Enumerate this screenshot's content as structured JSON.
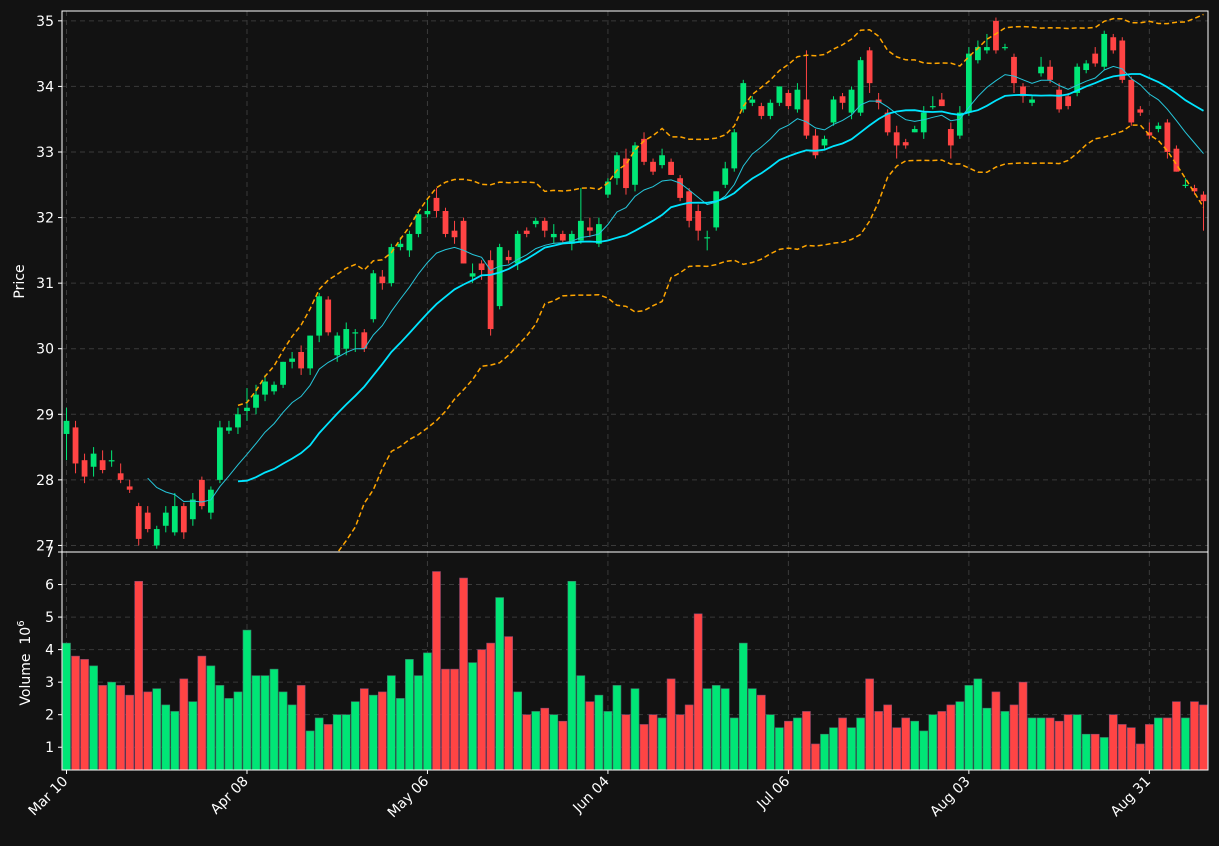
{
  "colors": {
    "background": "#121212",
    "up": "#00e676",
    "down": "#ff4444",
    "sma_fast": "#00e5ff",
    "sma_slow": "#26c6da",
    "bands": "#ffa500",
    "grid": "#3a3a3a",
    "axis": "#ffffff"
  },
  "chart_data": {
    "type": "candlestick",
    "grid": true,
    "price_panel": {
      "ylabel": "Price",
      "ylim": [
        26.9,
        35.15
      ],
      "yticks": [
        27,
        28,
        29,
        30,
        31,
        32,
        33,
        34,
        35
      ]
    },
    "volume_panel": {
      "ylabel": "Volume",
      "ylabel_exp": "6",
      "ylim": [
        0.3,
        7.0
      ],
      "yticks": [
        1,
        2,
        3,
        4,
        5,
        6,
        7
      ]
    },
    "x_tick_labels": [
      "Mar 10",
      "Apr 08",
      "May 06",
      "Jun 04",
      "Jul 06",
      "Aug 03",
      "Aug 31"
    ],
    "x_tick_index": [
      0,
      20,
      40,
      60,
      80,
      100,
      120
    ],
    "overlays": [
      "sma_fast (thin, cyan)",
      "sma_slow (thick, cyan)",
      "upper band (dashed, orange)",
      "lower band (dashed, orange)"
    ],
    "ohlc": [
      [
        28.7,
        29.1,
        28.3,
        28.9
      ],
      [
        28.8,
        28.9,
        28.1,
        28.25
      ],
      [
        28.3,
        28.4,
        27.95,
        28.05
      ],
      [
        28.2,
        28.5,
        28.05,
        28.4
      ],
      [
        28.3,
        28.45,
        28.1,
        28.15
      ],
      [
        28.3,
        28.45,
        28.2,
        28.3
      ],
      [
        28.1,
        28.25,
        27.95,
        28.0
      ],
      [
        27.9,
        28.0,
        27.8,
        27.85
      ],
      [
        27.6,
        27.65,
        27.0,
        27.1
      ],
      [
        27.5,
        27.6,
        27.2,
        27.25
      ],
      [
        27.0,
        27.3,
        26.95,
        27.25
      ],
      [
        27.3,
        27.6,
        27.2,
        27.5
      ],
      [
        27.2,
        27.8,
        27.15,
        27.6
      ],
      [
        27.6,
        27.65,
        27.1,
        27.2
      ],
      [
        27.4,
        27.8,
        27.3,
        27.7
      ],
      [
        28.0,
        28.05,
        27.55,
        27.6
      ],
      [
        27.5,
        27.9,
        27.4,
        27.85
      ],
      [
        28.0,
        28.9,
        27.95,
        28.8
      ],
      [
        28.75,
        28.9,
        28.7,
        28.8
      ],
      [
        28.8,
        29.1,
        28.7,
        29.0
      ],
      [
        29.05,
        29.4,
        28.9,
        29.1
      ],
      [
        29.1,
        29.45,
        29.0,
        29.3
      ],
      [
        29.3,
        29.6,
        29.2,
        29.5
      ],
      [
        29.35,
        29.5,
        29.3,
        29.45
      ],
      [
        29.45,
        29.8,
        29.4,
        29.8
      ],
      [
        29.8,
        29.95,
        29.7,
        29.85
      ],
      [
        29.95,
        30.05,
        29.6,
        29.7
      ],
      [
        29.7,
        30.2,
        29.6,
        30.2
      ],
      [
        30.2,
        30.85,
        30.1,
        30.8
      ],
      [
        30.75,
        30.8,
        30.2,
        30.25
      ],
      [
        29.9,
        30.25,
        29.8,
        30.2
      ],
      [
        30.0,
        30.4,
        29.9,
        30.3
      ],
      [
        30.25,
        30.3,
        29.95,
        30.25
      ],
      [
        30.25,
        30.3,
        29.95,
        30.0
      ],
      [
        30.45,
        31.2,
        30.4,
        31.15
      ],
      [
        31.1,
        31.2,
        30.9,
        31.0
      ],
      [
        31.0,
        31.6,
        30.95,
        31.55
      ],
      [
        31.55,
        31.7,
        31.5,
        31.6
      ],
      [
        31.5,
        31.8,
        31.4,
        31.75
      ],
      [
        31.75,
        32.1,
        31.7,
        32.05
      ],
      [
        32.05,
        32.3,
        32.0,
        32.1
      ],
      [
        32.3,
        32.45,
        32.0,
        32.1
      ],
      [
        32.1,
        32.15,
        31.7,
        31.75
      ],
      [
        31.8,
        31.95,
        31.6,
        31.7
      ],
      [
        31.95,
        32.0,
        31.3,
        31.3
      ],
      [
        31.1,
        31.3,
        31.0,
        31.15
      ],
      [
        31.3,
        31.35,
        31.05,
        31.2
      ],
      [
        31.35,
        31.5,
        30.2,
        30.3
      ],
      [
        30.65,
        31.6,
        30.6,
        31.55
      ],
      [
        31.4,
        31.5,
        31.3,
        31.35
      ],
      [
        31.3,
        31.8,
        31.2,
        31.75
      ],
      [
        31.8,
        31.85,
        31.7,
        31.75
      ],
      [
        31.9,
        32.0,
        31.85,
        31.95
      ],
      [
        31.95,
        32.0,
        31.7,
        31.8
      ],
      [
        31.7,
        31.9,
        31.6,
        31.75
      ],
      [
        31.75,
        31.8,
        31.6,
        31.65
      ],
      [
        31.6,
        31.8,
        31.5,
        31.75
      ],
      [
        31.65,
        32.45,
        31.6,
        31.95
      ],
      [
        31.85,
        32.0,
        31.7,
        31.8
      ],
      [
        31.6,
        32.0,
        31.55,
        31.9
      ],
      [
        32.35,
        32.6,
        32.3,
        32.55
      ],
      [
        32.6,
        33.0,
        32.5,
        32.95
      ],
      [
        32.9,
        33.05,
        32.35,
        32.45
      ],
      [
        32.5,
        33.15,
        32.4,
        33.1
      ],
      [
        33.2,
        33.3,
        32.8,
        32.85
      ],
      [
        32.85,
        32.9,
        32.65,
        32.7
      ],
      [
        32.8,
        33.05,
        32.75,
        32.95
      ],
      [
        32.85,
        32.9,
        32.65,
        32.65
      ],
      [
        32.6,
        32.65,
        32.25,
        32.3
      ],
      [
        32.4,
        32.45,
        31.85,
        31.95
      ],
      [
        32.1,
        32.2,
        31.65,
        31.8
      ],
      [
        31.7,
        31.8,
        31.5,
        31.7
      ],
      [
        31.85,
        32.4,
        31.8,
        32.4
      ],
      [
        32.5,
        32.85,
        32.45,
        32.75
      ],
      [
        32.75,
        33.35,
        32.7,
        33.3
      ],
      [
        33.65,
        34.1,
        33.6,
        34.05
      ],
      [
        33.75,
        33.85,
        33.7,
        33.8
      ],
      [
        33.7,
        33.75,
        33.5,
        33.55
      ],
      [
        33.55,
        33.8,
        33.5,
        33.75
      ],
      [
        33.75,
        34.0,
        33.7,
        34.0
      ],
      [
        33.9,
        33.95,
        33.65,
        33.7
      ],
      [
        33.65,
        34.05,
        33.6,
        33.95
      ],
      [
        33.8,
        34.55,
        33.2,
        33.25
      ],
      [
        33.25,
        33.35,
        32.9,
        32.95
      ],
      [
        33.1,
        33.25,
        33.05,
        33.2
      ],
      [
        33.45,
        33.85,
        33.4,
        33.8
      ],
      [
        33.85,
        33.9,
        33.65,
        33.75
      ],
      [
        33.6,
        34.0,
        33.5,
        33.95
      ],
      [
        33.6,
        34.45,
        33.55,
        34.4
      ],
      [
        34.55,
        34.6,
        33.9,
        34.05
      ],
      [
        33.8,
        33.9,
        33.65,
        33.75
      ],
      [
        33.6,
        33.65,
        33.25,
        33.3
      ],
      [
        33.3,
        33.4,
        32.9,
        33.1
      ],
      [
        33.15,
        33.2,
        33.05,
        33.1
      ],
      [
        33.3,
        33.4,
        33.3,
        33.35
      ],
      [
        33.3,
        33.7,
        33.2,
        33.6
      ],
      [
        33.7,
        33.85,
        33.65,
        33.7
      ],
      [
        33.8,
        33.9,
        33.7,
        33.7
      ],
      [
        33.35,
        33.45,
        32.9,
        33.1
      ],
      [
        33.25,
        33.7,
        33.2,
        33.6
      ],
      [
        33.6,
        34.6,
        33.55,
        34.5
      ],
      [
        34.4,
        34.7,
        34.35,
        34.6
      ],
      [
        34.55,
        34.8,
        34.5,
        34.6
      ],
      [
        35.0,
        35.05,
        34.5,
        34.55
      ],
      [
        34.6,
        34.65,
        34.55,
        34.6
      ],
      [
        34.45,
        34.5,
        33.9,
        34.05
      ],
      [
        34.0,
        34.05,
        33.75,
        33.85
      ],
      [
        33.75,
        33.85,
        33.7,
        33.8
      ],
      [
        34.2,
        34.45,
        34.15,
        34.3
      ],
      [
        34.3,
        34.4,
        34.05,
        34.1
      ],
      [
        33.95,
        34.05,
        33.6,
        33.65
      ],
      [
        33.85,
        33.9,
        33.65,
        33.7
      ],
      [
        33.9,
        34.35,
        33.85,
        34.3
      ],
      [
        34.25,
        34.4,
        34.2,
        34.35
      ],
      [
        34.5,
        34.6,
        34.3,
        34.35
      ],
      [
        34.3,
        34.85,
        34.25,
        34.8
      ],
      [
        34.75,
        34.8,
        34.5,
        34.55
      ],
      [
        34.7,
        34.75,
        34.05,
        34.1
      ],
      [
        34.1,
        34.15,
        33.4,
        33.45
      ],
      [
        33.65,
        33.7,
        33.55,
        33.6
      ],
      [
        33.3,
        33.45,
        33.2,
        33.25
      ],
      [
        33.35,
        33.45,
        33.3,
        33.4
      ],
      [
        33.45,
        33.5,
        32.9,
        33.0
      ],
      [
        33.05,
        33.1,
        32.7,
        32.7
      ],
      [
        32.5,
        32.6,
        32.45,
        32.5
      ],
      [
        32.45,
        32.5,
        32.35,
        32.4
      ],
      [
        32.35,
        32.4,
        31.8,
        32.25
      ]
    ],
    "volume_millions": [
      4.2,
      3.8,
      3.7,
      3.5,
      2.9,
      3.0,
      2.9,
      2.6,
      6.1,
      2.7,
      2.8,
      2.3,
      2.1,
      3.1,
      2.4,
      3.8,
      3.5,
      2.9,
      2.5,
      2.7,
      4.6,
      3.2,
      3.2,
      3.4,
      2.7,
      2.3,
      2.9,
      1.5,
      1.9,
      1.7,
      2.0,
      2.0,
      2.4,
      2.8,
      2.6,
      2.7,
      3.2,
      2.5,
      3.7,
      3.2,
      3.9,
      6.4,
      3.4,
      3.4,
      6.2,
      3.6,
      4.0,
      4.2,
      5.6,
      4.4,
      2.7,
      2.0,
      2.1,
      2.2,
      2.0,
      1.8,
      6.1,
      3.2,
      2.4,
      2.6,
      2.1,
      2.9,
      2.0,
      2.8,
      1.7,
      2.0,
      1.9,
      3.1,
      2.0,
      2.3,
      5.1,
      2.8,
      2.9,
      2.8,
      1.9,
      4.2,
      2.8,
      2.6,
      2.0,
      1.6,
      1.8,
      1.9,
      2.1,
      1.1,
      1.4,
      1.6,
      1.9,
      1.6,
      1.9,
      3.1,
      2.1,
      2.3,
      1.6,
      1.9,
      1.8,
      1.5,
      2.0,
      2.1,
      2.3,
      2.4,
      2.9,
      3.1,
      2.2,
      2.7,
      2.1,
      2.3,
      3.0,
      1.9,
      1.9,
      1.9,
      1.8,
      2.0,
      2.0,
      1.4,
      1.4,
      1.3,
      2.0,
      1.7,
      1.6,
      1.1,
      1.7,
      1.9,
      1.9,
      2.4,
      1.9,
      2.4,
      2.3
    ]
  }
}
